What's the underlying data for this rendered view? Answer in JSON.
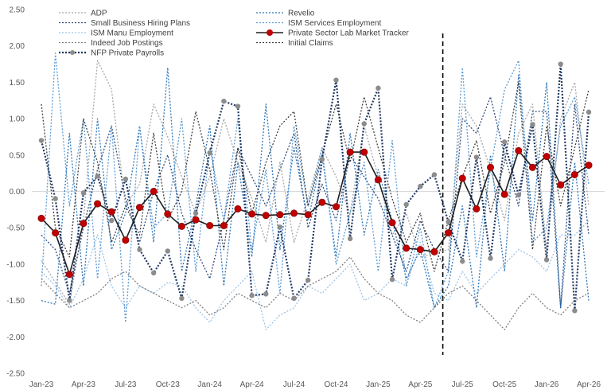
{
  "chart_data": {
    "type": "line",
    "title": "",
    "xlabel": "",
    "ylabel": "",
    "ylim": [
      -2.5,
      2.5
    ],
    "yticks": [
      "2.50",
      "2.00",
      "1.50",
      "1.00",
      "0.50",
      "0.00",
      "-0.50",
      "-1.00",
      "-1.50",
      "-2.00",
      "-2.50"
    ],
    "xticks": [
      "Jan-23",
      "Apr-23",
      "Jul-23",
      "Oct-23",
      "Jan-24",
      "Apr-24",
      "Jul-24",
      "Oct-24",
      "Jan-25",
      "Apr-25",
      "Jul-25",
      "Oct-25",
      "Jan-26",
      "Apr-26"
    ],
    "months": [
      "Jan-23",
      "Feb-23",
      "Mar-23",
      "Apr-23",
      "May-23",
      "Jun-23",
      "Jul-23",
      "Aug-23",
      "Sep-23",
      "Oct-23",
      "Nov-23",
      "Dec-23",
      "Jan-24",
      "Feb-24",
      "Mar-24",
      "Apr-24",
      "May-24",
      "Jun-24",
      "Jul-24",
      "Aug-24",
      "Sep-24",
      "Oct-24",
      "Nov-24",
      "Dec-24",
      "Jan-25",
      "Feb-25",
      "Mar-25",
      "Apr-25",
      "May-25",
      "Jun-25",
      "Jul-25",
      "Aug-25",
      "Sep-25",
      "Oct-25",
      "Nov-25",
      "Dec-25",
      "Jan-26",
      "Feb-26",
      "Mar-26",
      "Apr-26"
    ],
    "vertical_marker": "Jun-25",
    "grid": false,
    "legend": "top-left, two columns",
    "series": [
      {
        "name": "ADP",
        "color": "#a6a6a6",
        "style": "dotted",
        "values": [
          -0.95,
          -1.25,
          -1.55,
          -0.4,
          1.8,
          1.4,
          -0.2,
          0.1,
          1.2,
          0.75,
          0.2,
          -0.3,
          0.2,
          1.0,
          0.4,
          -0.1,
          -0.7,
          0.4,
          -0.7,
          -0.1,
          0.6,
          0.2,
          -0.3,
          0.9,
          0.2,
          -0.6,
          -0.3,
          -0.9,
          -0.85,
          -0.8,
          1.2,
          0.9,
          0.3,
          -0.4,
          0.8,
          1.2,
          -0.8,
          1.0,
          1.5,
          -0.2
        ]
      },
      {
        "name": "Small Business Hiring Plans",
        "color": "#2f4a7a",
        "style": "dotted",
        "values": [
          -0.6,
          -0.8,
          -1.4,
          -0.5,
          0.3,
          0.9,
          -0.1,
          -0.7,
          0.0,
          0.5,
          -0.3,
          -0.8,
          -1.2,
          -0.4,
          0.6,
          0.2,
          -0.2,
          0.3,
          0.8,
          -0.5,
          0.1,
          -0.4,
          0.5,
          0.2,
          -0.1,
          -0.6,
          -1.1,
          -0.4,
          -0.8,
          -1.1,
          1.0,
          0.8,
          1.3,
          0.5,
          -0.2,
          1.1,
          1.1,
          -1.6,
          1.2,
          -0.6
        ]
      },
      {
        "name": "ISM Manu Employment",
        "color": "#9dc3e6",
        "style": "dotted",
        "values": [
          -1.1,
          -1.3,
          -1.6,
          -1.2,
          -0.6,
          -1.3,
          -1.6,
          -1.3,
          -1.4,
          -1.25,
          -1.3,
          -1.6,
          -1.8,
          -1.5,
          -1.3,
          -1.1,
          -1.9,
          -1.7,
          -1.6,
          -1.3,
          -1.4,
          -1.2,
          -1.0,
          -1.5,
          -1.4,
          -1.2,
          -1.3,
          -0.7,
          -1.4,
          -1.5,
          -1.1,
          -1.4,
          -1.2,
          -1.0,
          -0.8,
          -0.9,
          -1.1,
          -0.6,
          -0.6,
          -0.4
        ]
      },
      {
        "name": "Indeed Job Postings",
        "color": "#7f7f7f",
        "style": "dotted",
        "values": [
          -1.2,
          -1.4,
          -1.6,
          -1.5,
          -1.4,
          -1.2,
          -1.1,
          -1.3,
          -1.4,
          -1.5,
          -1.6,
          -1.5,
          -1.7,
          -1.6,
          -1.4,
          -1.5,
          -1.6,
          -1.4,
          -1.5,
          -1.3,
          -1.2,
          -1.1,
          -0.9,
          -1.2,
          -1.4,
          -1.5,
          -1.7,
          -1.8,
          -1.6,
          -1.4,
          -1.3,
          -1.5,
          -1.7,
          -1.9,
          -1.6,
          -1.4,
          -1.6,
          -1.7,
          -1.5,
          -1.4
        ]
      },
      {
        "name": "NFP Private Payrolls",
        "color": "#1f3864",
        "style": "dotted-markers",
        "values": [
          0.7,
          -0.1,
          -1.5,
          -0.02,
          0.21,
          -0.4,
          0.17,
          -0.8,
          -1.12,
          -0.82,
          -1.47,
          -0.3,
          0.53,
          1.24,
          1.17,
          -1.43,
          -1.41,
          -0.49,
          -1.47,
          -1.22,
          0.44,
          1.53,
          -0.65,
          0.93,
          1.42,
          -1.21,
          -0.18,
          0.07,
          0.23,
          -0.42,
          -0.96,
          0.47,
          -0.92,
          0.68,
          -0.05,
          0.92,
          -0.94,
          1.75,
          -1.64,
          1.09
        ]
      },
      {
        "name": "Revelio",
        "color": "#2e75b6",
        "style": "dotted",
        "values": [
          -1.5,
          -1.55,
          0.8,
          -1.3,
          1.0,
          -0.8,
          -0.3,
          0.9,
          -0.7,
          1.7,
          -1.1,
          -0.2,
          0.9,
          -1.3,
          0.4,
          -0.9,
          1.2,
          -0.8,
          0.6,
          -0.4,
          0.5,
          -0.9,
          0.8,
          -0.6,
          0.3,
          -0.4,
          -1.2,
          -0.8,
          -1.6,
          -1.3,
          -0.2,
          -1.6,
          0.5,
          -1.1,
          1.6,
          -0.4,
          1.5,
          -1.6,
          0.4,
          -1.5
        ]
      },
      {
        "name": "ISM Services Employment",
        "color": "#5b9bd5",
        "style": "dotted",
        "values": [
          -1.3,
          1.9,
          -0.2,
          1.0,
          -1.2,
          0.9,
          -1.8,
          0.9,
          -0.5,
          -0.3,
          1.0,
          -1.1,
          0.6,
          -0.4,
          1.0,
          -0.8,
          0.3,
          -1.4,
          0.9,
          -0.2,
          0.6,
          -1.0,
          -0.3,
          0.4,
          -1.1,
          0.7,
          -1.3,
          -0.5,
          -1.6,
          -1.1,
          1.7,
          -0.9,
          0.3,
          1.4,
          1.8,
          -0.7,
          -0.5,
          0.9,
          1.3,
          0.1
        ]
      },
      {
        "name": "Initial Claims",
        "color": "#404040",
        "style": "dotted",
        "values": [
          1.2,
          -0.5,
          -0.9,
          1.0,
          0.4,
          -0.7,
          -0.2,
          -0.6,
          0.8,
          -0.4,
          0.0,
          1.1,
          0.3,
          -0.8,
          0.6,
          -0.3,
          0.4,
          0.9,
          1.1,
          -0.2,
          0.5,
          1.2,
          0.4,
          1.3,
          0.6,
          -0.1,
          -0.7,
          -0.3,
          -1.1,
          -0.4,
          0.2,
          0.7,
          -0.3,
          0.4,
          1.5,
          -0.8,
          0.9,
          -0.2,
          0.6,
          1.4
        ]
      },
      {
        "name": "Private Sector Lab Market Tracker",
        "color": "#1f1f1f",
        "marker_color": "#c00000",
        "style": "solid-markers",
        "values": [
          -0.37,
          -0.57,
          -1.14,
          -0.44,
          -0.17,
          -0.28,
          -0.67,
          -0.22,
          0.0,
          -0.31,
          -0.48,
          -0.39,
          -0.47,
          -0.47,
          -0.24,
          -0.31,
          -0.33,
          -0.32,
          -0.3,
          -0.32,
          -0.15,
          -0.21,
          0.54,
          0.54,
          0.16,
          -0.43,
          -0.78,
          -0.8,
          -0.83,
          -0.57,
          0.18,
          -0.24,
          0.33,
          -0.04,
          0.56,
          0.33,
          0.48,
          0.09,
          0.23,
          0.36
        ]
      }
    ]
  }
}
